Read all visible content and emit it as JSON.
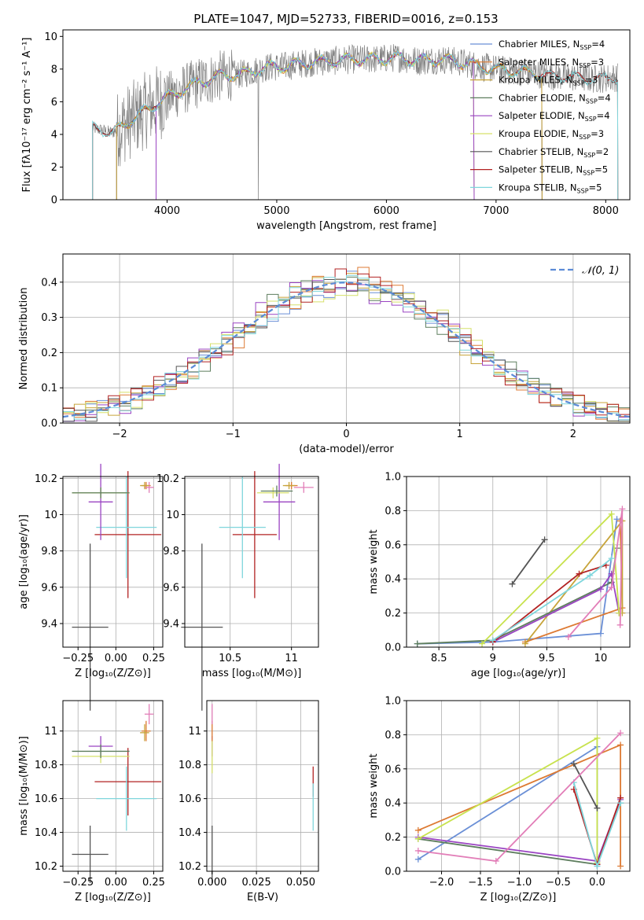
{
  "figure_title": "PLATE=1047, MJD=52733, FIBERID=0016, z=0.153",
  "palette": {
    "Chabrier MILES": "#6a8fd6",
    "Salpeter MILES": "#dd7a33",
    "Kroupa MILES": "#c7a43a",
    "Chabrier ELODIE": "#5e7e5e",
    "Salpeter ELODIE": "#9a44c2",
    "Kroupa ELODIE": "#d6e06a",
    "Chabrier STELIB": "#555555",
    "Salpeter STELIB": "#b22222",
    "Kroupa STELIB": "#7fd6dc",
    "pink": "#e27eb8",
    "green2": "#c8e24e",
    "gauss": "#5b8bd6",
    "data": "#808080"
  },
  "chart_data": [
    {
      "id": "spectrum",
      "type": "line",
      "title": "PLATE=1047, MJD=52733, FIBERID=0016, z=0.153",
      "xlabel": "wavelength [Angstrom, rest frame]",
      "ylabel": "Flux [fλ10⁻¹⁷ erg cm⁻² s⁻¹ A⁻¹]",
      "xlim": [
        3050,
        8220
      ],
      "ylim": [
        0,
        10.4
      ],
      "xticks": [
        4000,
        5000,
        6000,
        7000,
        8000
      ],
      "yticks": [
        0,
        2,
        4,
        6,
        8,
        10
      ],
      "legend_position": "right",
      "legend": [
        {
          "label": "Chabrier MILES, N",
          "sub": "SSP",
          "tail": "=4",
          "color": "#6a8fd6"
        },
        {
          "label": "Salpeter MILES, N",
          "sub": "SSP",
          "tail": "=3",
          "color": "#dd7a33"
        },
        {
          "label": "Kroupa MILES, N",
          "sub": "SSP",
          "tail": "=3",
          "color": "#c7a43a"
        },
        {
          "label": "Chabrier ELODIE, N",
          "sub": "SSP",
          "tail": "=4",
          "color": "#5e7e5e"
        },
        {
          "label": "Salpeter ELODIE, N",
          "sub": "SSP",
          "tail": "=4",
          "color": "#9a44c2"
        },
        {
          "label": "Kroupa ELODIE, N",
          "sub": "SSP",
          "tail": "=3",
          "color": "#d6e06a"
        },
        {
          "label": "Chabrier STELIB, N",
          "sub": "SSP",
          "tail": "=2",
          "color": "#555555"
        },
        {
          "label": "Salpeter STELIB, N",
          "sub": "SSP",
          "tail": "=5",
          "color": "#b22222"
        },
        {
          "label": "Kroupa STELIB, N",
          "sub": "SSP",
          "tail": "=5",
          "color": "#7fd6dc"
        }
      ],
      "continuum": [
        [
          3320,
          4.4
        ],
        [
          3500,
          4.1
        ],
        [
          3700,
          5.0
        ],
        [
          3900,
          5.9
        ],
        [
          4100,
          6.6
        ],
        [
          4300,
          7.2
        ],
        [
          4500,
          7.6
        ],
        [
          4700,
          7.7
        ],
        [
          4900,
          8.1
        ],
        [
          5100,
          8.2
        ],
        [
          5300,
          8.4
        ],
        [
          5500,
          8.5
        ],
        [
          5700,
          8.6
        ],
        [
          5900,
          8.6
        ],
        [
          6100,
          8.7
        ],
        [
          6300,
          8.5
        ],
        [
          6500,
          8.6
        ],
        [
          6700,
          8.4
        ],
        [
          6900,
          8.1
        ],
        [
          7100,
          7.9
        ],
        [
          7300,
          7.8
        ],
        [
          7500,
          7.6
        ],
        [
          7700,
          7.5
        ],
        [
          7900,
          7.4
        ],
        [
          8100,
          7.5
        ]
      ],
      "model_cuts": [
        {
          "name": "MILES",
          "range": [
            3540,
            7420
          ]
        },
        {
          "name": "ELODIE",
          "range": [
            3900,
            6800
          ]
        }
      ]
    },
    {
      "id": "residuals",
      "type": "histogram",
      "xlabel": "(data-model)/error",
      "ylabel": "Normed distribution",
      "xlim": [
        -2.5,
        2.5
      ],
      "ylim": [
        0,
        0.48
      ],
      "xticks": [
        -2,
        -1,
        0,
        1,
        2
      ],
      "xtick_labels": [
        "−2",
        "−1",
        "0",
        "1",
        "2"
      ],
      "yticks": [
        0.0,
        0.1,
        0.2,
        0.3,
        0.4
      ],
      "bin_width": 0.1,
      "legend": [
        {
          "label": "𝒩(0, 1)",
          "style": "dashed",
          "color": "#5b8bd6"
        }
      ],
      "legend_position": "top-right"
    },
    {
      "id": "age-vs-Z",
      "type": "scatter",
      "xlabel": "Z [log₁₀(Z/Z⊙)]",
      "ylabel": "age  [log₁₀(age/yr)]",
      "xlim": [
        -0.35,
        0.31
      ],
      "ylim": [
        9.27,
        10.21
      ],
      "xticks": [
        -0.25,
        0.0,
        0.25
      ],
      "xtick_labels": [
        "−0.25",
        "0.00",
        "0.25"
      ],
      "yticks": [
        9.4,
        9.6,
        9.8,
        10.0,
        10.2
      ],
      "points": [
        {
          "color": "#555555",
          "x": -0.17,
          "y": 9.38,
          "xerr": 0.12,
          "yerr": 0.46
        },
        {
          "color": "#b22222",
          "x": 0.08,
          "y": 9.89,
          "xerr": 0.22,
          "yerr": 0.35
        },
        {
          "color": "#7fd6dc",
          "x": 0.07,
          "y": 9.93,
          "xerr": 0.2,
          "yerr": 0.28
        },
        {
          "color": "#9a44c2",
          "x": -0.1,
          "y": 10.07,
          "xerr": 0.08,
          "yerr": 0.21
        },
        {
          "color": "#d6e06a",
          "x": -0.1,
          "y": 10.12,
          "xerr": 0.19,
          "yerr": 0.03
        },
        {
          "color": "#5e7e5e",
          "x": -0.1,
          "y": 10.12,
          "xerr": 0.19,
          "yerr": 0.03
        },
        {
          "color": "#dd7a33",
          "x": 0.2,
          "y": 10.16,
          "xerr": 0.03,
          "yerr": 0.02
        },
        {
          "color": "#e27eb8",
          "x": 0.22,
          "y": 10.15,
          "xerr": 0.03,
          "yerr": 0.03
        },
        {
          "color": "#c7a43a",
          "x": 0.19,
          "y": 10.16,
          "xerr": 0.03,
          "yerr": 0.02
        }
      ]
    },
    {
      "id": "age-vs-mass",
      "type": "scatter",
      "xlabel": "mass [log₁₀(M/M⊙)]",
      "ylabel": "",
      "xlim": [
        10.13,
        11.22
      ],
      "ylim": [
        9.27,
        10.21
      ],
      "xticks": [
        10.5,
        11.0
      ],
      "yticks": [
        9.4,
        9.6,
        9.8,
        10.0,
        10.2
      ],
      "points": [
        {
          "color": "#555555",
          "x": 10.27,
          "y": 9.38,
          "xerr": 0.17,
          "yerr": 0.46
        },
        {
          "color": "#b22222",
          "x": 10.7,
          "y": 9.89,
          "xerr": 0.18,
          "yerr": 0.35
        },
        {
          "color": "#7fd6dc",
          "x": 10.6,
          "y": 9.93,
          "xerr": 0.19,
          "yerr": 0.28
        },
        {
          "color": "#9a44c2",
          "x": 10.9,
          "y": 10.07,
          "xerr": 0.13,
          "yerr": 0.21
        },
        {
          "color": "#d6e06a",
          "x": 10.85,
          "y": 10.12,
          "xerr": 0.13,
          "yerr": 0.03
        },
        {
          "color": "#5e7e5e",
          "x": 10.88,
          "y": 10.13,
          "xerr": 0.13,
          "yerr": 0.03
        },
        {
          "color": "#dd7a33",
          "x": 11.0,
          "y": 10.16,
          "xerr": 0.05,
          "yerr": 0.02
        },
        {
          "color": "#e27eb8",
          "x": 11.1,
          "y": 10.15,
          "xerr": 0.08,
          "yerr": 0.03
        },
        {
          "color": "#c7a43a",
          "x": 10.98,
          "y": 10.16,
          "xerr": 0.05,
          "yerr": 0.02
        }
      ]
    },
    {
      "id": "weight-vs-age",
      "type": "line",
      "xlabel": "age  [log₁₀(age/yr)]",
      "ylabel": "mass weight",
      "xlim": [
        8.2,
        10.27
      ],
      "ylim": [
        0.0,
        1.0
      ],
      "xticks": [
        8.5,
        9.0,
        9.5,
        10.0
      ],
      "yticks": [
        0.0,
        0.2,
        0.4,
        0.6,
        0.8,
        1.0
      ],
      "series": [
        {
          "color": "#6a8fd6",
          "points": [
            [
              8.3,
              0.02
            ],
            [
              9.0,
              0.03
            ],
            [
              10.0,
              0.08
            ],
            [
              10.15,
              0.75
            ]
          ]
        },
        {
          "color": "#dd7a33",
          "points": [
            [
              9.3,
              0.03
            ],
            [
              10.2,
              0.23
            ],
            [
              10.18,
              0.74
            ]
          ]
        },
        {
          "color": "#c7a43a",
          "points": [
            [
              9.3,
              0.02
            ],
            [
              10.2,
              0.74
            ],
            [
              10.2,
              0.2
            ]
          ]
        },
        {
          "color": "#5e7e5e",
          "points": [
            [
              8.3,
              0.02
            ],
            [
              9.0,
              0.04
            ],
            [
              10.1,
              0.38
            ],
            [
              10.15,
              0.58
            ]
          ]
        },
        {
          "color": "#9a44c2",
          "points": [
            [
              9.0,
              0.03
            ],
            [
              10.0,
              0.34
            ],
            [
              10.1,
              0.43
            ],
            [
              10.17,
              0.2
            ]
          ]
        },
        {
          "color": "#c8e24e",
          "points": [
            [
              8.9,
              0.02
            ],
            [
              10.1,
              0.78
            ],
            [
              10.17,
              0.2
            ]
          ]
        },
        {
          "color": "#555555",
          "points": [
            [
              9.18,
              0.37
            ],
            [
              9.48,
              0.63
            ]
          ]
        },
        {
          "color": "#b22222",
          "points": [
            [
              9.0,
              0.03
            ],
            [
              9.8,
              0.43
            ],
            [
              10.05,
              0.48
            ]
          ]
        },
        {
          "color": "#7fd6dc",
          "points": [
            [
              9.0,
              0.04
            ],
            [
              9.9,
              0.42
            ],
            [
              10.1,
              0.52
            ]
          ]
        },
        {
          "color": "#e27eb8",
          "points": [
            [
              9.7,
              0.06
            ],
            [
              10.1,
              0.35
            ],
            [
              10.2,
              0.81
            ],
            [
              10.18,
              0.13
            ]
          ]
        }
      ]
    },
    {
      "id": "mass-vs-Z",
      "type": "scatter",
      "xlabel": "Z [log₁₀(Z/Z⊙)]",
      "ylabel": "mass [log₁₀(M/M⊙)]",
      "xlim": [
        -0.35,
        0.31
      ],
      "ylim": [
        10.17,
        11.18
      ],
      "xticks": [
        -0.25,
        0.0,
        0.25
      ],
      "xtick_labels": [
        "−0.25",
        "0.00",
        "0.25"
      ],
      "yticks": [
        10.2,
        10.4,
        10.6,
        10.8,
        11.0
      ],
      "points": [
        {
          "color": "#555555",
          "x": -0.17,
          "y": 10.27,
          "xerr": 0.12,
          "yerr": 0.17
        },
        {
          "color": "#b22222",
          "x": 0.08,
          "y": 10.7,
          "xerr": 0.22,
          "yerr": 0.2
        },
        {
          "color": "#7fd6dc",
          "x": 0.07,
          "y": 10.6,
          "xerr": 0.2,
          "yerr": 0.19
        },
        {
          "color": "#9a44c2",
          "x": -0.1,
          "y": 10.91,
          "xerr": 0.08,
          "yerr": 0.06
        },
        {
          "color": "#d6e06a",
          "x": -0.1,
          "y": 10.85,
          "xerr": 0.19,
          "yerr": 0.04
        },
        {
          "color": "#5e7e5e",
          "x": -0.1,
          "y": 10.88,
          "xerr": 0.19,
          "yerr": 0.04
        },
        {
          "color": "#dd7a33",
          "x": 0.2,
          "y": 11.0,
          "xerr": 0.03,
          "yerr": 0.06
        },
        {
          "color": "#e27eb8",
          "x": 0.22,
          "y": 11.1,
          "xerr": 0.03,
          "yerr": 0.06
        },
        {
          "color": "#c7a43a",
          "x": 0.19,
          "y": 10.99,
          "xerr": 0.03,
          "yerr": 0.05
        }
      ]
    },
    {
      "id": "mass-vs-EBV",
      "type": "scatter",
      "xlabel": "E(B-V)",
      "ylabel": "",
      "xlim": [
        -0.003,
        0.06
      ],
      "ylim": [
        10.17,
        11.18
      ],
      "xticks": [
        0.0,
        0.025,
        0.05
      ],
      "xtick_labels": [
        "0.000",
        "0.025",
        "0.050"
      ],
      "yticks": [
        10.2,
        10.4,
        10.6,
        10.8,
        11.0
      ],
      "points": [
        {
          "color": "#555555",
          "x": 0.0,
          "y": 10.27,
          "xerr": 0.0,
          "yerr": 0.17
        },
        {
          "color": "#9a44c2",
          "x": 0.0,
          "y": 10.91,
          "xerr": 0.0,
          "yerr": 0.06
        },
        {
          "color": "#d6e06a",
          "x": 0.0,
          "y": 10.85,
          "xerr": 0.0,
          "yerr": 0.1
        },
        {
          "color": "#dd7a33",
          "x": 0.0,
          "y": 11.0,
          "xerr": 0.0,
          "yerr": 0.06
        },
        {
          "color": "#e27eb8",
          "x": 0.0,
          "y": 11.1,
          "xerr": 0.0,
          "yerr": 0.06
        },
        {
          "color": "#b22222",
          "x": 0.057,
          "y": 10.7,
          "xerr": 0.0,
          "yerr": 0.09
        },
        {
          "color": "#7fd6dc",
          "x": 0.057,
          "y": 10.55,
          "xerr": 0.0,
          "yerr": 0.14
        }
      ]
    },
    {
      "id": "weight-vs-Z",
      "type": "line",
      "xlabel": "Z [log₁₀(Z/Z⊙)]",
      "ylabel": "mass weight",
      "xlim": [
        -2.45,
        0.42
      ],
      "ylim": [
        0.0,
        1.0
      ],
      "xticks": [
        -2.0,
        -1.5,
        -1.0,
        -0.5,
        0.0
      ],
      "xtick_labels": [
        "−2.0",
        "−1.5",
        "−1.0",
        "−0.5",
        "0.0"
      ],
      "yticks": [
        0.0,
        0.2,
        0.4,
        0.6,
        0.8,
        1.0
      ],
      "series": [
        {
          "color": "#6a8fd6",
          "points": [
            [
              -2.3,
              0.07
            ],
            [
              0.0,
              0.73
            ],
            [
              0.0,
              0.03
            ]
          ]
        },
        {
          "color": "#dd7a33",
          "points": [
            [
              -2.3,
              0.24
            ],
            [
              0.3,
              0.74
            ],
            [
              0.3,
              0.03
            ]
          ]
        },
        {
          "color": "#5e7e5e",
          "points": [
            [
              -2.3,
              0.19
            ],
            [
              0.0,
              0.04
            ],
            [
              0.3,
              0.4
            ]
          ]
        },
        {
          "color": "#9a44c2",
          "points": [
            [
              -2.3,
              0.2
            ],
            [
              0.0,
              0.06
            ],
            [
              0.3,
              0.42
            ]
          ]
        },
        {
          "color": "#c8e24e",
          "points": [
            [
              -2.3,
              0.19
            ],
            [
              0.0,
              0.78
            ],
            [
              0.0,
              0.05
            ]
          ]
        },
        {
          "color": "#555555",
          "points": [
            [
              -0.3,
              0.63
            ],
            [
              0.0,
              0.37
            ]
          ]
        },
        {
          "color": "#b22222",
          "points": [
            [
              -0.3,
              0.48
            ],
            [
              0.0,
              0.04
            ],
            [
              0.3,
              0.43
            ]
          ]
        },
        {
          "color": "#7fd6dc",
          "points": [
            [
              -0.3,
              0.52
            ],
            [
              0.0,
              0.03
            ],
            [
              0.3,
              0.4
            ]
          ]
        },
        {
          "color": "#e27eb8",
          "points": [
            [
              -2.3,
              0.12
            ],
            [
              -1.3,
              0.06
            ],
            [
              0.3,
              0.81
            ]
          ]
        }
      ]
    }
  ]
}
